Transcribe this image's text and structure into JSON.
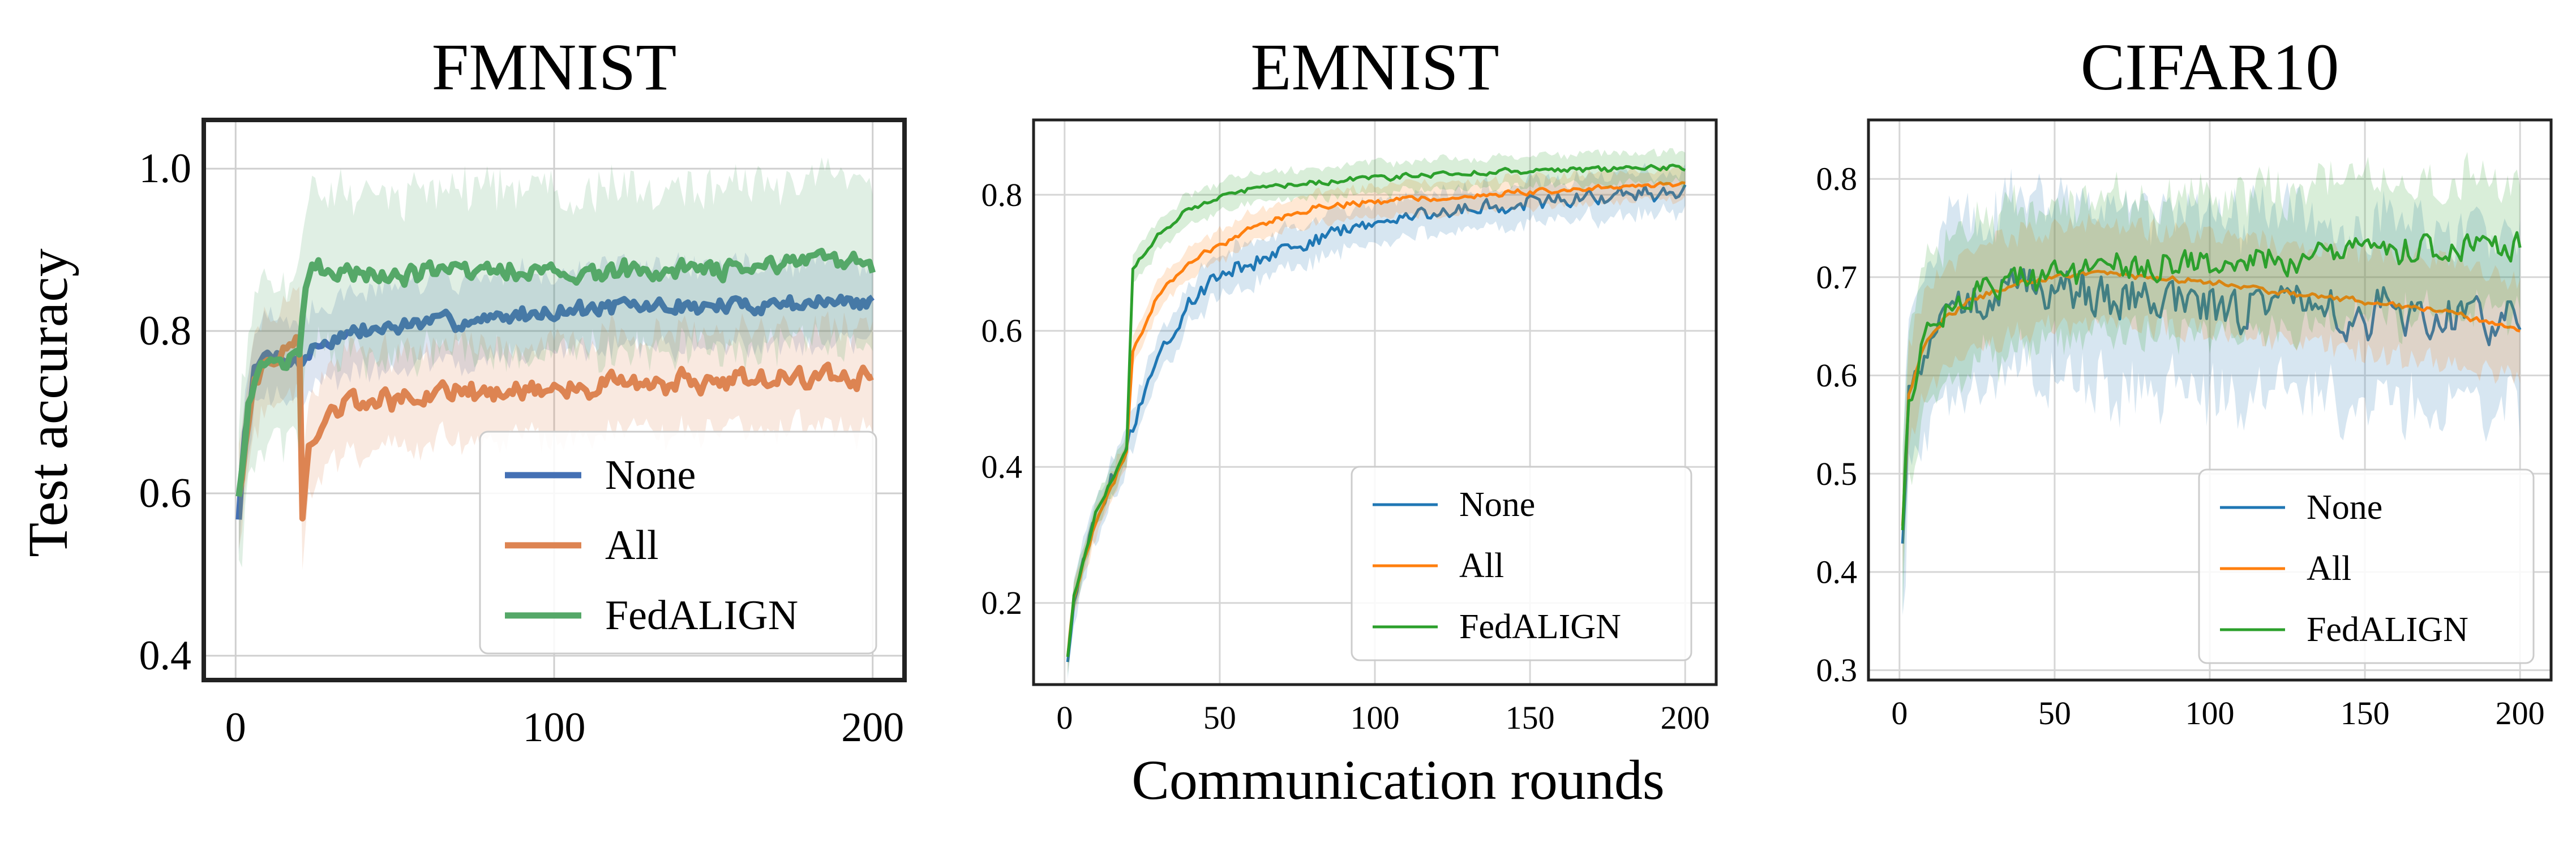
{
  "figure": {
    "ylabel": "Test accuracy",
    "xlabel": "Communication rounds"
  },
  "colors": {
    "p1": {
      "None": "#4470b4",
      "All": "#dd8452",
      "FedALIGN": "#55a868"
    },
    "p23": {
      "None": "#1f77b4",
      "All": "#ff7f0e",
      "FedALIGN": "#2ca02c"
    }
  },
  "chart_data": [
    {
      "type": "line",
      "title": "FMNIST",
      "xlabel": "",
      "ylabel": "Test accuracy",
      "xlim": [
        -10,
        210
      ],
      "ylim": [
        0.37,
        1.06
      ],
      "xticks": [
        0,
        100,
        200
      ],
      "yticks": [
        0.4,
        0.6,
        0.8,
        1.0
      ],
      "ytick_labels": [
        "0.4",
        "0.6",
        "0.8",
        "1.0"
      ],
      "grid": true,
      "legend": {
        "position": "bottom-right",
        "entries": [
          "None",
          "All",
          "FedALIGN"
        ]
      },
      "series": [
        {
          "name": "None",
          "points": [
            [
              1,
              0.57
            ],
            [
              3,
              0.68
            ],
            [
              6,
              0.75
            ],
            [
              10,
              0.77
            ],
            [
              15,
              0.77
            ],
            [
              20,
              0.76
            ],
            [
              25,
              0.78
            ],
            [
              30,
              0.79
            ],
            [
              40,
              0.8
            ],
            [
              60,
              0.81
            ],
            [
              80,
              0.815
            ],
            [
              100,
              0.825
            ],
            [
              120,
              0.83
            ],
            [
              150,
              0.83
            ],
            [
              175,
              0.835
            ],
            [
              200,
              0.835
            ]
          ],
          "band": 0.05,
          "noise": 0.013
        },
        {
          "name": "All",
          "points": [
            [
              1,
              0.6
            ],
            [
              5,
              0.72
            ],
            [
              10,
              0.76
            ],
            [
              15,
              0.78
            ],
            [
              20,
              0.79
            ],
            [
              21,
              0.57
            ],
            [
              23,
              0.65
            ],
            [
              27,
              0.69
            ],
            [
              35,
              0.71
            ],
            [
              60,
              0.72
            ],
            [
              100,
              0.73
            ],
            [
              150,
              0.74
            ],
            [
              200,
              0.745
            ]
          ],
          "band": 0.06,
          "noise": 0.018
        },
        {
          "name": "FedALIGN",
          "points": [
            [
              1,
              0.6
            ],
            [
              4,
              0.7
            ],
            [
              8,
              0.75
            ],
            [
              12,
              0.77
            ],
            [
              16,
              0.76
            ],
            [
              20,
              0.77
            ],
            [
              22,
              0.86
            ],
            [
              25,
              0.88
            ],
            [
              30,
              0.875
            ],
            [
              60,
              0.87
            ],
            [
              100,
              0.875
            ],
            [
              150,
              0.875
            ],
            [
              200,
              0.885
            ]
          ],
          "band": 0.1,
          "noise": 0.016
        }
      ]
    },
    {
      "type": "line",
      "title": "EMNIST",
      "xlabel": "Communication rounds",
      "ylabel": "",
      "xlim": [
        -10,
        210
      ],
      "ylim": [
        0.08,
        0.91
      ],
      "xticks": [
        0,
        50,
        100,
        150,
        200
      ],
      "yticks": [
        0.2,
        0.4,
        0.6,
        0.8
      ],
      "ytick_labels": [
        "0.2",
        "0.4",
        "0.6",
        "0.8"
      ],
      "grid": true,
      "legend": {
        "position": "bottom-right",
        "entries": [
          "None",
          "All",
          "FedALIGN"
        ]
      },
      "series": [
        {
          "name": "None",
          "points": [
            [
              1,
              0.11
            ],
            [
              3,
              0.2
            ],
            [
              6,
              0.26
            ],
            [
              10,
              0.32
            ],
            [
              15,
              0.38
            ],
            [
              20,
              0.43
            ],
            [
              25,
              0.5
            ],
            [
              30,
              0.56
            ],
            [
              40,
              0.64
            ],
            [
              50,
              0.68
            ],
            [
              70,
              0.72
            ],
            [
              100,
              0.76
            ],
            [
              130,
              0.78
            ],
            [
              150,
              0.79
            ],
            [
              175,
              0.8
            ],
            [
              200,
              0.805
            ]
          ],
          "band": 0.03,
          "noise": 0.015
        },
        {
          "name": "All",
          "points": [
            [
              1,
              0.12
            ],
            [
              3,
              0.21
            ],
            [
              6,
              0.26
            ],
            [
              10,
              0.32
            ],
            [
              15,
              0.37
            ],
            [
              20,
              0.42
            ],
            [
              22,
              0.57
            ],
            [
              25,
              0.6
            ],
            [
              30,
              0.65
            ],
            [
              40,
              0.7
            ],
            [
              60,
              0.75
            ],
            [
              80,
              0.78
            ],
            [
              100,
              0.79
            ],
            [
              150,
              0.805
            ],
            [
              200,
              0.815
            ]
          ],
          "band": 0.022,
          "noise": 0.006
        },
        {
          "name": "FedALIGN",
          "points": [
            [
              1,
              0.12
            ],
            [
              3,
              0.21
            ],
            [
              6,
              0.26
            ],
            [
              10,
              0.33
            ],
            [
              15,
              0.38
            ],
            [
              20,
              0.43
            ],
            [
              22,
              0.69
            ],
            [
              25,
              0.71
            ],
            [
              30,
              0.74
            ],
            [
              40,
              0.78
            ],
            [
              60,
              0.81
            ],
            [
              100,
              0.825
            ],
            [
              150,
              0.835
            ],
            [
              200,
              0.84
            ]
          ],
          "band": 0.022,
          "noise": 0.005
        }
      ]
    },
    {
      "type": "line",
      "title": "CIFAR10",
      "xlabel": "",
      "ylabel": "",
      "xlim": [
        -10,
        210
      ],
      "ylim": [
        0.29,
        0.86
      ],
      "xticks": [
        0,
        50,
        100,
        150,
        200
      ],
      "yticks": [
        0.3,
        0.4,
        0.5,
        0.6,
        0.7,
        0.8
      ],
      "ytick_labels": [
        "0.3",
        "0.4",
        "0.5",
        "0.6",
        "0.7",
        "0.8"
      ],
      "grid": true,
      "legend": {
        "position": "bottom-right",
        "entries": [
          "None",
          "All",
          "FedALIGN"
        ]
      },
      "series": [
        {
          "name": "None",
          "points": [
            [
              1,
              0.45
            ],
            [
              3,
              0.58
            ],
            [
              8,
              0.63
            ],
            [
              15,
              0.66
            ],
            [
              25,
              0.68
            ],
            [
              40,
              0.69
            ],
            [
              60,
              0.685
            ],
            [
              80,
              0.68
            ],
            [
              100,
              0.67
            ],
            [
              130,
              0.665
            ],
            [
              150,
              0.665
            ],
            [
              175,
              0.66
            ],
            [
              200,
              0.665
            ]
          ],
          "band": 0.09,
          "noise": 0.03
        },
        {
          "name": "All",
          "points": [
            [
              1,
              0.45
            ],
            [
              3,
              0.58
            ],
            [
              8,
              0.63
            ],
            [
              15,
              0.66
            ],
            [
              25,
              0.68
            ],
            [
              40,
              0.695
            ],
            [
              60,
              0.705
            ],
            [
              80,
              0.7
            ],
            [
              100,
              0.695
            ],
            [
              120,
              0.685
            ],
            [
              150,
              0.675
            ],
            [
              175,
              0.665
            ],
            [
              200,
              0.645
            ]
          ],
          "band": 0.05,
          "noise": 0.004
        },
        {
          "name": "FedALIGN",
          "points": [
            [
              1,
              0.45
            ],
            [
              3,
              0.58
            ],
            [
              8,
              0.64
            ],
            [
              15,
              0.66
            ],
            [
              25,
              0.68
            ],
            [
              40,
              0.7
            ],
            [
              60,
              0.705
            ],
            [
              80,
              0.71
            ],
            [
              100,
              0.715
            ],
            [
              120,
              0.72
            ],
            [
              150,
              0.725
            ],
            [
              175,
              0.73
            ],
            [
              200,
              0.735
            ]
          ],
          "band": 0.07,
          "noise": 0.02
        }
      ]
    }
  ]
}
